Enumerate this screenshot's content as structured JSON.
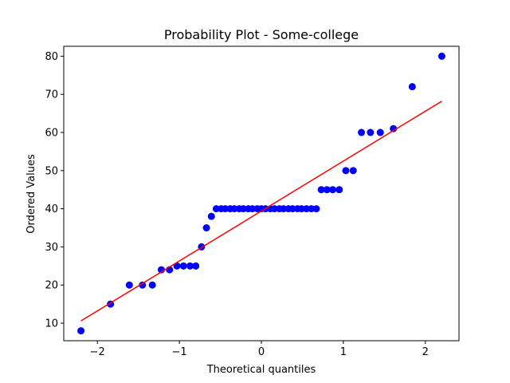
{
  "chart_data": {
    "type": "scatter",
    "title": "Probability Plot - Some-college",
    "xlabel": "Theoretical quantiles",
    "ylabel": "Ordered Values",
    "xlim": [
      -2.41,
      2.41
    ],
    "ylim": [
      5.4,
      82.6
    ],
    "xticks": [
      -2,
      -1,
      0,
      1,
      2
    ],
    "xtick_labels": [
      "−2",
      "−1",
      "0",
      "1",
      "2"
    ],
    "yticks": [
      10,
      20,
      30,
      40,
      50,
      60,
      70,
      80
    ],
    "ytick_labels": [
      "10",
      "20",
      "30",
      "40",
      "50",
      "60",
      "70",
      "80"
    ],
    "grid": false,
    "marker_color": "#0000ff",
    "line_color": "#ff0000",
    "series": [
      {
        "kind": "points",
        "x": [
          -2.2,
          -1.84,
          -1.61,
          -1.45,
          -1.33,
          -1.22,
          -1.12,
          -1.03,
          -0.95,
          -0.87,
          -0.8,
          -0.73,
          -0.67,
          -0.61,
          -0.55,
          -0.49,
          -0.44,
          -0.38,
          -0.33,
          -0.27,
          -0.22,
          -0.16,
          -0.11,
          -0.05,
          0.0,
          0.05,
          0.11,
          0.16,
          0.22,
          0.27,
          0.33,
          0.38,
          0.44,
          0.49,
          0.55,
          0.61,
          0.67,
          0.73,
          0.8,
          0.87,
          0.95,
          1.03,
          1.12,
          1.22,
          1.33,
          1.45,
          1.61,
          1.84,
          2.2
        ],
        "y": [
          8,
          15,
          20,
          20,
          20,
          24,
          24,
          25,
          25,
          25,
          25,
          30,
          35,
          38,
          40,
          40,
          40,
          40,
          40,
          40,
          40,
          40,
          40,
          40,
          40,
          40,
          40,
          40,
          40,
          40,
          40,
          40,
          40,
          40,
          40,
          40,
          40,
          45,
          45,
          45,
          45,
          50,
          50,
          60,
          60,
          60,
          61,
          72,
          80
        ]
      },
      {
        "kind": "fit-line",
        "x": [
          -2.2,
          2.2
        ],
        "y": [
          10.6,
          68.2
        ]
      }
    ]
  }
}
